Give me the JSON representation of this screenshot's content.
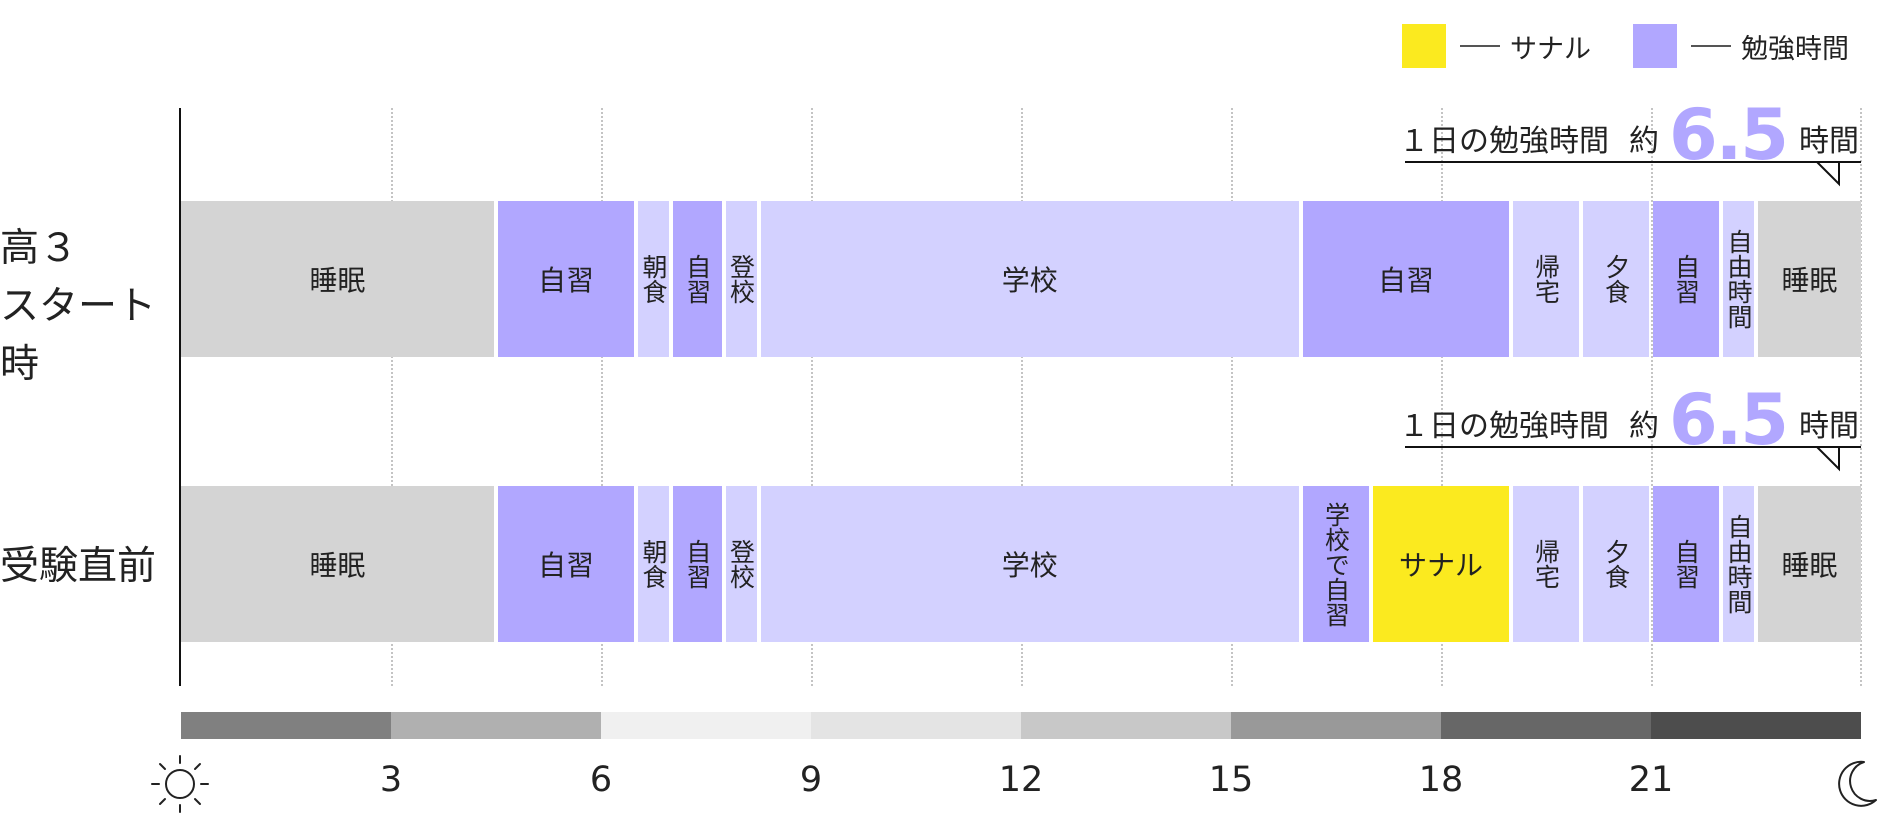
{
  "legend": [
    {
      "label": "サナル",
      "color": "#fbea1f"
    },
    {
      "label": "勉強時間",
      "color": "#b1a7ff"
    }
  ],
  "chart_data": {
    "type": "bar",
    "x_axis": {
      "min": 0,
      "max": 24,
      "ticks": [
        3,
        6,
        9,
        12,
        15,
        18,
        21
      ],
      "start_icon": "sun-icon",
      "end_icon": "moon-icon"
    },
    "grid": true,
    "time_bands": [
      {
        "from": 0,
        "to": 3,
        "color": "#808080"
      },
      {
        "from": 3,
        "to": 6,
        "color": "#b0b0b0"
      },
      {
        "from": 6,
        "to": 9,
        "color": "#f0f0f0"
      },
      {
        "from": 9,
        "to": 12,
        "color": "#e4e4e4"
      },
      {
        "from": 12,
        "to": 15,
        "color": "#c8c8c8"
      },
      {
        "from": 15,
        "to": 18,
        "color": "#999999"
      },
      {
        "from": 18,
        "to": 21,
        "color": "#676767"
      },
      {
        "from": 21,
        "to": 24,
        "color": "#4d4d4d"
      }
    ],
    "colors": {
      "sleep": "#d4d4d4",
      "study": "#b1a7ff",
      "other": "#d3d1ff",
      "sanaru": "#fbea1f"
    },
    "rows": [
      {
        "label": "高３\nスタート時",
        "callout": {
          "label": "１日の勉強時間",
          "prefix": "約",
          "value": "6.5",
          "unit": "時間"
        },
        "segments": [
          {
            "label": "睡眠",
            "start": 0,
            "end": 4.5,
            "kind": "sleep",
            "orient": "h"
          },
          {
            "label": "自習",
            "start": 4.5,
            "end": 6.5,
            "kind": "study",
            "orient": "h"
          },
          {
            "label": "朝食",
            "start": 6.5,
            "end": 7.0,
            "kind": "other",
            "orient": "v"
          },
          {
            "label": "自習",
            "start": 7.0,
            "end": 7.75,
            "kind": "study",
            "orient": "v"
          },
          {
            "label": "登校",
            "start": 7.75,
            "end": 8.25,
            "kind": "other",
            "orient": "v"
          },
          {
            "label": "学校",
            "start": 8.25,
            "end": 16.0,
            "kind": "other",
            "orient": "h"
          },
          {
            "label": "自習",
            "start": 16.0,
            "end": 19.0,
            "kind": "study",
            "orient": "h"
          },
          {
            "label": "帰宅",
            "start": 19.0,
            "end": 20.0,
            "kind": "other",
            "orient": "v"
          },
          {
            "label": "夕食",
            "start": 20.0,
            "end": 21.0,
            "kind": "other",
            "orient": "v"
          },
          {
            "label": "自習",
            "start": 21.0,
            "end": 22.0,
            "kind": "study",
            "orient": "v"
          },
          {
            "label": "自由時間",
            "start": 22.0,
            "end": 22.5,
            "kind": "other",
            "orient": "v"
          },
          {
            "label": "睡眠",
            "start": 22.5,
            "end": 24,
            "kind": "sleep",
            "orient": "h"
          }
        ]
      },
      {
        "label": "受験直前",
        "callout": {
          "label": "１日の勉強時間",
          "prefix": "約",
          "value": "6.5",
          "unit": "時間"
        },
        "segments": [
          {
            "label": "睡眠",
            "start": 0,
            "end": 4.5,
            "kind": "sleep",
            "orient": "h"
          },
          {
            "label": "自習",
            "start": 4.5,
            "end": 6.5,
            "kind": "study",
            "orient": "h"
          },
          {
            "label": "朝食",
            "start": 6.5,
            "end": 7.0,
            "kind": "other",
            "orient": "v"
          },
          {
            "label": "自習",
            "start": 7.0,
            "end": 7.75,
            "kind": "study",
            "orient": "v"
          },
          {
            "label": "登校",
            "start": 7.75,
            "end": 8.25,
            "kind": "other",
            "orient": "v"
          },
          {
            "label": "学校",
            "start": 8.25,
            "end": 16.0,
            "kind": "other",
            "orient": "h"
          },
          {
            "label": "学校で自習",
            "start": 16.0,
            "end": 17.0,
            "kind": "study",
            "orient": "v"
          },
          {
            "label": "サナル",
            "start": 17.0,
            "end": 19.0,
            "kind": "sanaru",
            "orient": "h"
          },
          {
            "label": "帰宅",
            "start": 19.0,
            "end": 20.0,
            "kind": "other",
            "orient": "v"
          },
          {
            "label": "夕食",
            "start": 20.0,
            "end": 21.0,
            "kind": "other",
            "orient": "v"
          },
          {
            "label": "自習",
            "start": 21.0,
            "end": 22.0,
            "kind": "study",
            "orient": "v"
          },
          {
            "label": "自由時間",
            "start": 22.0,
            "end": 22.5,
            "kind": "other",
            "orient": "v"
          },
          {
            "label": "睡眠",
            "start": 22.5,
            "end": 24,
            "kind": "sleep",
            "orient": "h"
          }
        ]
      }
    ]
  }
}
